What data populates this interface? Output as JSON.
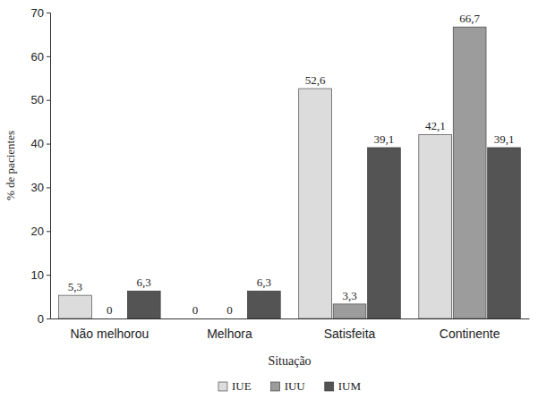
{
  "chart_data": {
    "type": "bar",
    "x_label": "Situação",
    "y_label": "% de pacientes",
    "categories": [
      "Não melhorou",
      "Melhora",
      "Satisfeita",
      "Continente"
    ],
    "series": [
      {
        "name": "IUE",
        "color": "#dcdcdc",
        "values": [
          5.3,
          0,
          52.6,
          42.1
        ],
        "value_labels": [
          "5,3",
          "0",
          "52,6",
          "42,1"
        ]
      },
      {
        "name": "IUU",
        "color": "#9c9c9c",
        "values": [
          0,
          0,
          3.3,
          66.7
        ],
        "value_labels": [
          "0",
          "0",
          "3,3",
          "66,7"
        ]
      },
      {
        "name": "IUM",
        "color": "#545454",
        "values": [
          6.3,
          6.3,
          39.1,
          39.1
        ],
        "value_labels": [
          "6,3",
          "6,3",
          "39,1",
          "39,1"
        ]
      }
    ],
    "ylim": [
      0,
      70
    ],
    "yticks": [
      0,
      10,
      20,
      30,
      40,
      50,
      60,
      70
    ],
    "grid": false,
    "legend": "bottom",
    "data_labels": true
  }
}
